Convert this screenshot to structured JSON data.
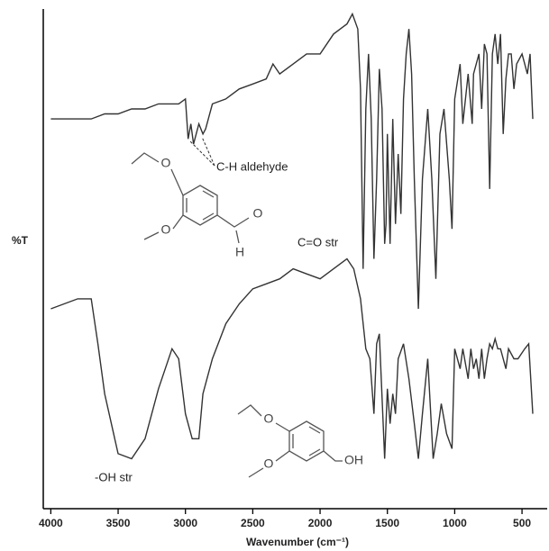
{
  "chart_data": {
    "type": "line",
    "x_label": "Wavenumber (cm⁻¹)",
    "y_label": "%T",
    "xlim": [
      4056,
      313
    ],
    "xticks": [
      4000,
      3500,
      3000,
      2500,
      2000,
      1500,
      1000,
      500
    ],
    "ylim": [
      0,
      100
    ],
    "series": [
      {
        "color": "#333333",
        "x": [
          4000,
          3800,
          3700,
          3600,
          3500,
          3400,
          3300,
          3200,
          3100,
          3050,
          3000,
          2980,
          2960,
          2940,
          2900,
          2870,
          2850,
          2800,
          2700,
          2600,
          2500,
          2400,
          2350,
          2300,
          2200,
          2100,
          2000,
          1900,
          1800,
          1760,
          1720,
          1700,
          1680,
          1660,
          1640,
          1620,
          1600,
          1580,
          1560,
          1540,
          1520,
          1510,
          1500,
          1480,
          1460,
          1440,
          1420,
          1400,
          1380,
          1360,
          1340,
          1320,
          1300,
          1270,
          1240,
          1200,
          1170,
          1140,
          1110,
          1080,
          1040,
          1020,
          1000,
          960,
          940,
          900,
          870,
          860,
          820,
          800,
          780,
          760,
          740,
          720,
          700,
          680,
          660,
          640,
          620,
          600,
          580,
          560,
          540,
          500,
          460,
          440,
          420
        ],
        "values": [
          78,
          78,
          78,
          79,
          79,
          80,
          80,
          81,
          81,
          81,
          82,
          74,
          77,
          73,
          77,
          75,
          76,
          81,
          82,
          84,
          85,
          86,
          89,
          87,
          89,
          91,
          91,
          95,
          97,
          99,
          96,
          84,
          48,
          80,
          91,
          78,
          50,
          66,
          88,
          80,
          53,
          57,
          75,
          53,
          78,
          57,
          71,
          59,
          82,
          91,
          96,
          87,
          66,
          40,
          66,
          80,
          66,
          46,
          75,
          80,
          66,
          56,
          82,
          89,
          77,
          87,
          77,
          87,
          91,
          80,
          93,
          91,
          64,
          91,
          95,
          89,
          95,
          75,
          86,
          91,
          91,
          84,
          89,
          91,
          87,
          91,
          78
        ]
      },
      {
        "color": "#333333",
        "x": [
          4000,
          3800,
          3700,
          3650,
          3600,
          3500,
          3400,
          3300,
          3200,
          3100,
          3050,
          3000,
          2950,
          2900,
          2870,
          2800,
          2700,
          2600,
          2500,
          2400,
          2300,
          2200,
          2100,
          2000,
          1900,
          1800,
          1750,
          1700,
          1660,
          1630,
          1600,
          1580,
          1560,
          1520,
          1500,
          1480,
          1460,
          1440,
          1420,
          1380,
          1340,
          1300,
          1270,
          1240,
          1200,
          1160,
          1130,
          1100,
          1060,
          1020,
          1000,
          960,
          940,
          900,
          880,
          860,
          840,
          820,
          800,
          780,
          760,
          740,
          720,
          700,
          680,
          660,
          620,
          600,
          560,
          530,
          480,
          450,
          420
        ],
        "values": [
          40,
          42,
          42,
          33,
          23,
          11,
          10,
          14,
          24,
          32,
          30,
          19,
          14,
          14,
          23,
          30,
          37,
          41,
          44,
          45,
          46,
          48,
          47,
          46,
          48,
          50,
          48,
          42,
          32,
          30,
          19,
          33,
          35,
          10,
          24,
          17,
          23,
          19,
          30,
          33,
          26,
          17,
          10,
          19,
          30,
          10,
          15,
          21,
          15,
          12,
          32,
          28,
          32,
          26,
          32,
          28,
          30,
          26,
          32,
          26,
          30,
          33,
          32,
          34,
          32,
          32,
          28,
          32,
          30,
          30,
          32,
          33,
          19
        ]
      }
    ],
    "annotations": [
      "C-H aldehyde",
      "C=O str",
      "-OH str"
    ],
    "molecule_labels": [
      [
        "O",
        "O",
        "O",
        "H"
      ],
      [
        "O",
        "O",
        "OH"
      ]
    ]
  }
}
